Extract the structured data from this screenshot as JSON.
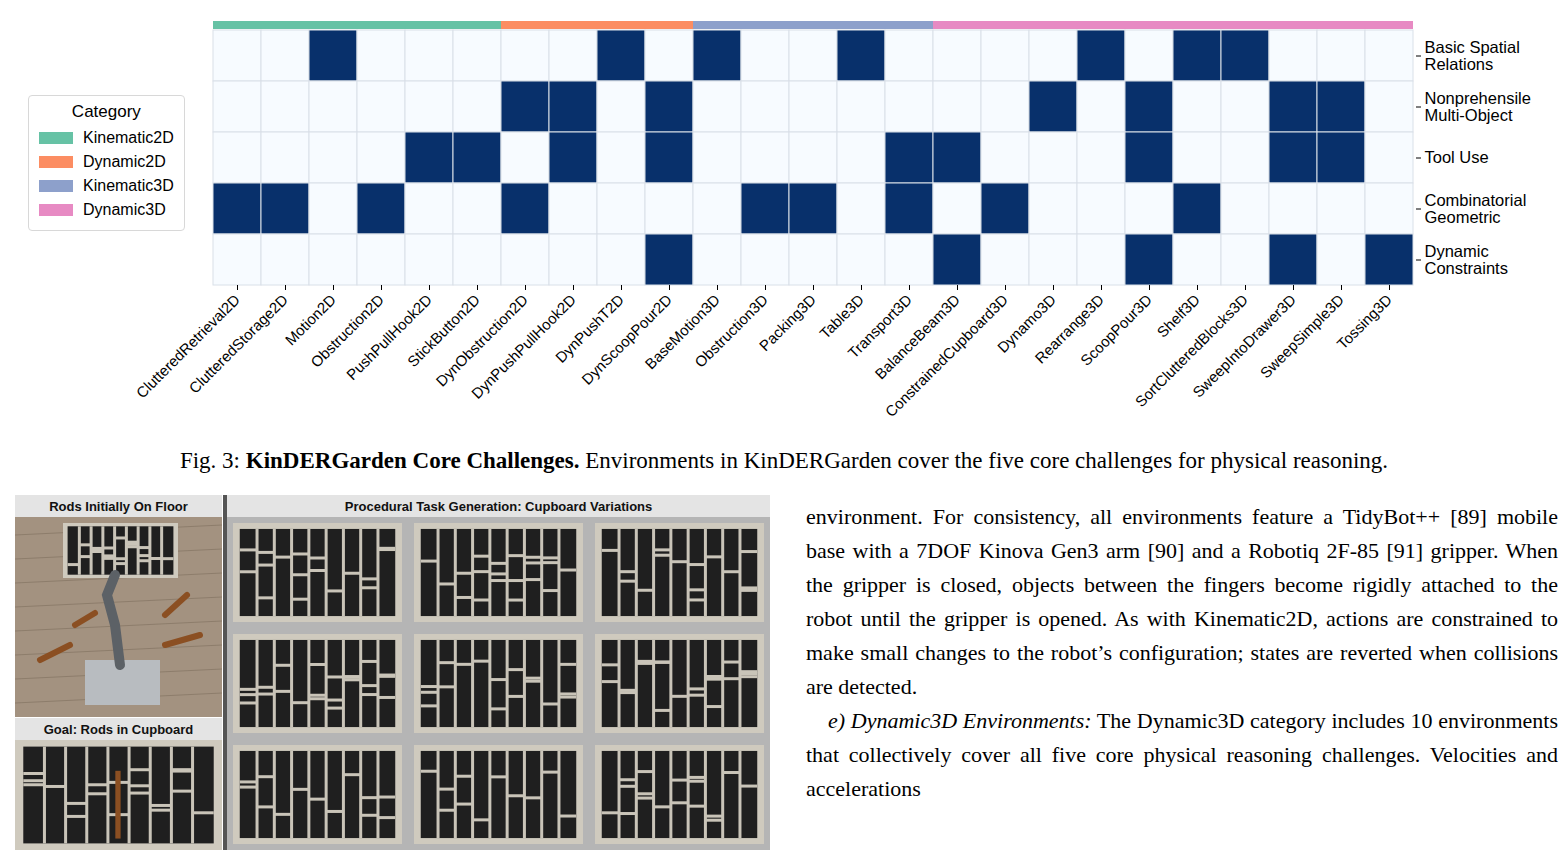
{
  "chart_data": {
    "type": "heatmap",
    "categories": [
      "ClutteredRetrieval2D",
      "ClutteredStorage2D",
      "Motion2D",
      "Obstruction2D",
      "PushPullHook2D",
      "StickButton2D",
      "DynObstruction2D",
      "DynPushPullHook2D",
      "DynPushT2D",
      "DynScoopPour2D",
      "BaseMotion3D",
      "Obstruction3D",
      "Packing3D",
      "Table3D",
      "Transport3D",
      "BalanceBeam3D",
      "ConstrainedCupboard3D",
      "Dynamo3D",
      "Rearrange3D",
      "ScoopPour3D",
      "Shelf3D",
      "SortClutteredBlocks3D",
      "SweepIntoDrawer3D",
      "SweepSimple3D",
      "Tossing3D"
    ],
    "rows": [
      "Basic Spatial Relations",
      "Nonprehensile Multi-Object",
      "Tool Use",
      "Combinatorial Geometric",
      "Dynamic Constraints"
    ],
    "cells": [
      [
        0,
        0,
        1,
        0,
        0,
        0,
        0,
        0,
        1,
        0,
        1,
        0,
        0,
        1,
        0,
        0,
        0,
        0,
        1,
        0,
        1,
        1,
        0,
        0,
        0
      ],
      [
        0,
        0,
        0,
        0,
        0,
        0,
        1,
        1,
        0,
        1,
        0,
        0,
        0,
        0,
        0,
        0,
        0,
        1,
        0,
        1,
        0,
        0,
        1,
        1,
        0
      ],
      [
        0,
        0,
        0,
        0,
        1,
        1,
        0,
        1,
        0,
        1,
        0,
        0,
        0,
        0,
        1,
        1,
        0,
        0,
        0,
        1,
        0,
        0,
        1,
        1,
        0
      ],
      [
        1,
        1,
        0,
        1,
        0,
        0,
        1,
        0,
        0,
        0,
        0,
        1,
        1,
        0,
        1,
        0,
        1,
        0,
        0,
        0,
        1,
        0,
        0,
        0,
        0
      ],
      [
        0,
        0,
        0,
        0,
        0,
        0,
        0,
        0,
        0,
        1,
        0,
        0,
        0,
        0,
        0,
        1,
        0,
        0,
        0,
        1,
        0,
        0,
        1,
        0,
        1
      ]
    ],
    "cell_colors": [
      "#f7fbff",
      "#08306b"
    ],
    "column_category": [
      "Kinematic2D",
      "Kinematic2D",
      "Kinematic2D",
      "Kinematic2D",
      "Kinematic2D",
      "Kinematic2D",
      "Dynamic2D",
      "Dynamic2D",
      "Dynamic2D",
      "Dynamic2D",
      "Kinematic3D",
      "Kinematic3D",
      "Kinematic3D",
      "Kinematic3D",
      "Kinematic3D",
      "Dynamic3D",
      "Dynamic3D",
      "Dynamic3D",
      "Dynamic3D",
      "Dynamic3D",
      "Dynamic3D",
      "Dynamic3D",
      "Dynamic3D",
      "Dynamic3D",
      "Dynamic3D"
    ],
    "legend_title": "Category",
    "series": [
      {
        "name": "Kinematic2D",
        "color": "#66c2a5"
      },
      {
        "name": "Dynamic2D",
        "color": "#fc8d62"
      },
      {
        "name": "Kinematic3D",
        "color": "#8da0cb"
      },
      {
        "name": "Dynamic3D",
        "color": "#e78ac3"
      }
    ],
    "legend": "left",
    "tick_labels": true
  },
  "caption": {
    "label": "Fig. 3:",
    "title": "KinDERGarden Core Challenges.",
    "text": "Environments in KinDERGarden cover the five core challenges for physical reasoning."
  },
  "figure": {
    "left_top": "Rods Initially On Floor",
    "left_bottom": "Goal: Rods in Cupboard",
    "right": "Procedural Task Generation: Cupboard Variations"
  },
  "body_text": {
    "paragraphs": [
      {
        "text": "environment. For consistency, all environments feature a TidyBot++ [89] mobile base with a 7DOF Kinova Gen3 arm [90] and a Robotiq 2F-85 [91] gripper. When the gripper is closed, objects between the fingers become rigidly attached to the robot until the gripper is opened. As with Kinematic2D, actions are constrained to make small changes to the robot’s configuration; states are reverted when collisions are detected."
      },
      {
        "heading": "e) Dynamic3D Environments:",
        "text": "The Dynamic3D category includes 10 environments that collectively cover all five core physical reasoning challenges. Velocities and accelerations"
      }
    ]
  }
}
